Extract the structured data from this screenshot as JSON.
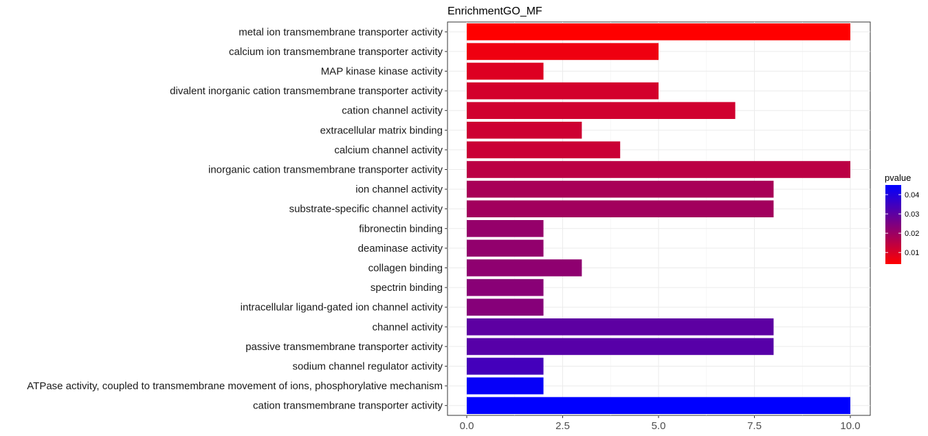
{
  "chart_data": {
    "type": "bar",
    "orientation": "horizontal",
    "title": "EnrichmentGO_MF",
    "xlabel": "",
    "ylabel": "",
    "xlim": [
      0,
      10.55
    ],
    "x_ticks": [
      0,
      2.5,
      5,
      7.5,
      10
    ],
    "x_tick_labels": [
      "0.0",
      "2.5",
      "5.0",
      "7.5",
      "10.0"
    ],
    "grid": true,
    "legend_position": "right",
    "color_scale": {
      "name": "pvalue",
      "low_color": "#ff0000",
      "high_color": "#0000ff",
      "min": 0.004,
      "max": 0.045,
      "ticks": [
        0.01,
        0.02,
        0.03,
        0.04
      ],
      "tick_labels": [
        "0.01",
        "0.02",
        "0.03",
        "0.04"
      ]
    },
    "categories": [
      "metal ion transmembrane transporter activity",
      "calcium ion transmembrane transporter activity",
      "MAP kinase kinase activity",
      "divalent inorganic cation transmembrane transporter activity",
      "cation channel activity",
      "extracellular matrix binding",
      "calcium channel activity",
      "inorganic cation transmembrane transporter activity",
      "ion channel activity",
      "substrate-specific channel activity",
      "fibronectin binding",
      "deaminase activity",
      "collagen binding",
      "spectrin binding",
      "intracellular ligand-gated ion channel activity",
      "channel activity",
      "passive transmembrane transporter activity",
      "sodium channel regulator activity",
      "ATPase activity, coupled to transmembrane movement of ions, phosphorylative mechanism",
      "cation transmembrane transporter activity"
    ],
    "values": [
      10,
      5,
      2,
      5,
      7,
      3,
      4,
      10,
      8,
      8,
      2,
      2,
      3,
      2,
      2,
      8,
      8,
      2,
      2,
      10
    ],
    "pvalues": [
      0.004,
      0.0065,
      0.0095,
      0.011,
      0.0115,
      0.012,
      0.0125,
      0.015,
      0.018,
      0.019,
      0.021,
      0.0215,
      0.022,
      0.023,
      0.0235,
      0.03,
      0.031,
      0.034,
      0.044,
      0.045
    ]
  }
}
